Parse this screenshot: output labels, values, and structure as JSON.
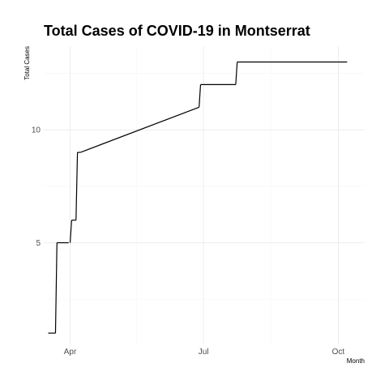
{
  "chart_data": {
    "type": "line",
    "title": "Total Cases of COVID-19 in Montserrat",
    "xlabel": "Month",
    "ylabel": "Total Cases",
    "x_ticks": [
      {
        "date": "2020-04-01",
        "label": "Apr"
      },
      {
        "date": "2020-07-01",
        "label": "Jul"
      },
      {
        "date": "2020-10-01",
        "label": "Oct"
      }
    ],
    "y_ticks": [
      5,
      10
    ],
    "xlim": [
      "2020-03-14",
      "2020-10-19"
    ],
    "ylim": [
      0.5,
      13.7
    ],
    "grid": true,
    "line_color": "#000000",
    "series": [
      {
        "x": [
          "2020-03-17",
          "2020-03-22",
          "2020-03-23",
          "2020-03-31",
          "2020-04-01",
          "2020-04-02",
          "2020-04-05",
          "2020-04-06",
          "2020-04-08",
          "2020-06-28",
          "2020-06-29",
          "2020-07-23",
          "2020-07-24",
          "2020-10-07"
        ],
        "y": [
          1,
          1,
          5,
          5,
          5,
          6,
          6,
          9,
          9,
          11,
          12,
          12,
          13,
          13
        ],
        "connected": [
          true,
          true,
          true,
          false,
          true,
          true,
          true,
          true,
          true,
          true,
          true,
          true,
          true
        ]
      }
    ]
  }
}
